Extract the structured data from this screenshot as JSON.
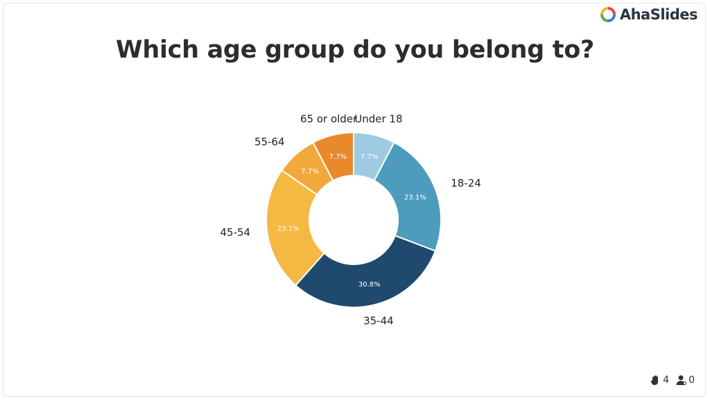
{
  "brand": {
    "name": "AhaSlides",
    "colors": [
      "#e84b3c",
      "#f2b632",
      "#4cae4f",
      "#3b7dd8",
      "#8e5cc7"
    ]
  },
  "question": {
    "title": "Which age group do you belong to?"
  },
  "footer": {
    "reactions": {
      "icon": "raised-hand-icon",
      "count": "4"
    },
    "participants": {
      "icon": "user-icon",
      "count": "0"
    }
  },
  "chart_data": {
    "type": "pie",
    "donut": true,
    "title": "Which age group do you belong to?",
    "categories": [
      "Under 18",
      "18-24",
      "35-44",
      "45-54",
      "55-64",
      "65 or older"
    ],
    "values": [
      7.7,
      23.1,
      30.8,
      23.1,
      7.7,
      7.7
    ],
    "value_labels": [
      "7.7%",
      "23.1%",
      "30.8%",
      "23.1%",
      "7.7%",
      "7.7%"
    ],
    "colors": [
      "#9ecae1",
      "#4d9bbd",
      "#1f4a6e",
      "#f4b942",
      "#f2a93b",
      "#e8892c"
    ],
    "legend": "none"
  }
}
